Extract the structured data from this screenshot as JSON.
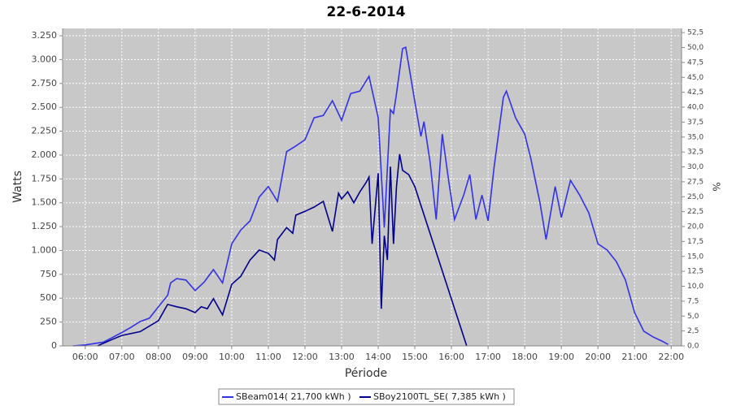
{
  "chart_data": {
    "type": "line",
    "title": "22-6-2014",
    "x_label": "Période",
    "y_label": "Watts",
    "y2_label": "%",
    "xlim": [
      "05:23",
      "22:17"
    ],
    "xticks": [
      "06:00",
      "07:00",
      "08:00",
      "09:00",
      "10:00",
      "11:00",
      "12:00",
      "13:00",
      "14:00",
      "15:00",
      "16:00",
      "17:00",
      "18:00",
      "19:00",
      "20:00",
      "21:00",
      "22:00"
    ],
    "ylim": [
      0,
      3327
    ],
    "yticks": [
      {
        "value": 0,
        "label": "0"
      },
      {
        "value": 250,
        "label": "250"
      },
      {
        "value": 500,
        "label": "500"
      },
      {
        "value": 750,
        "label": "750"
      },
      {
        "value": 1000,
        "label": "1.000"
      },
      {
        "value": 1250,
        "label": "1.250"
      },
      {
        "value": 1500,
        "label": "1.500"
      },
      {
        "value": 1750,
        "label": "1.750"
      },
      {
        "value": 2000,
        "label": "2.000"
      },
      {
        "value": 2250,
        "label": "2.250"
      },
      {
        "value": 2500,
        "label": "2.500"
      },
      {
        "value": 2750,
        "label": "2.750"
      },
      {
        "value": 3000,
        "label": "3.000"
      },
      {
        "value": 3250,
        "label": "3.250"
      }
    ],
    "y2lim": [
      0,
      53.2
    ],
    "y2ticks": [
      {
        "value": 0,
        "label": "0,0"
      },
      {
        "value": 2.5,
        "label": "2,5"
      },
      {
        "value": 5,
        "label": "5,0"
      },
      {
        "value": 7.5,
        "label": "7,5"
      },
      {
        "value": 10,
        "label": "10,0"
      },
      {
        "value": 12.5,
        "label": "12,5"
      },
      {
        "value": 15,
        "label": "15,0"
      },
      {
        "value": 17.5,
        "label": "17,5"
      },
      {
        "value": 20,
        "label": "20,0"
      },
      {
        "value": 22.5,
        "label": "22,5"
      },
      {
        "value": 25,
        "label": "25,0"
      },
      {
        "value": 27.5,
        "label": "27,5"
      },
      {
        "value": 30,
        "label": "30,0"
      },
      {
        "value": 32.5,
        "label": "32,5"
      },
      {
        "value": 35,
        "label": "35,0"
      },
      {
        "value": 37.5,
        "label": "37,5"
      },
      {
        "value": 40,
        "label": "40,0"
      },
      {
        "value": 42.5,
        "label": "42,5"
      },
      {
        "value": 45,
        "label": "45,0"
      },
      {
        "value": 47.5,
        "label": "47,5"
      },
      {
        "value": 50,
        "label": "50,0"
      },
      {
        "value": 52.5,
        "label": "52,5"
      }
    ],
    "grid": true,
    "legend": "bottom",
    "series": [
      {
        "name": "SBeam014( 21,700 kWh )",
        "color": "#3232e6",
        "x": [
          "05:40",
          "06:00",
          "06:30",
          "06:45",
          "07:00",
          "07:15",
          "07:30",
          "07:45",
          "08:00",
          "08:15",
          "08:20",
          "08:30",
          "08:45",
          "09:00",
          "09:15",
          "09:30",
          "09:45",
          "10:00",
          "10:15",
          "10:30",
          "10:45",
          "11:00",
          "11:15",
          "11:30",
          "11:45",
          "12:00",
          "12:15",
          "12:30",
          "12:45",
          "13:00",
          "13:15",
          "13:30",
          "13:45",
          "14:00",
          "14:10",
          "14:20",
          "14:25",
          "14:30",
          "14:40",
          "14:45",
          "14:50",
          "15:00",
          "15:10",
          "15:15",
          "15:25",
          "15:35",
          "15:45",
          "15:55",
          "16:05",
          "16:20",
          "16:30",
          "16:40",
          "16:50",
          "17:00",
          "17:10",
          "17:25",
          "17:30",
          "17:45",
          "18:00",
          "18:10",
          "18:25",
          "18:35",
          "18:50",
          "19:00",
          "19:15",
          "19:30",
          "19:45",
          "20:00",
          "20:15",
          "20:30",
          "20:45",
          "21:00",
          "21:15",
          "21:30",
          "21:45",
          "21:55"
        ],
        "values": [
          0,
          10,
          40,
          90,
          140,
          195,
          255,
          290,
          410,
          530,
          660,
          705,
          690,
          580,
          670,
          800,
          660,
          1070,
          1215,
          1310,
          1560,
          1670,
          1515,
          2035,
          2095,
          2160,
          2390,
          2415,
          2570,
          2365,
          2645,
          2670,
          2825,
          2390,
          1240,
          2475,
          2435,
          2645,
          3115,
          3130,
          2945,
          2560,
          2195,
          2350,
          1925,
          1325,
          2220,
          1750,
          1325,
          1580,
          1795,
          1325,
          1580,
          1310,
          1880,
          2605,
          2670,
          2390,
          2220,
          1965,
          1500,
          1115,
          1670,
          1345,
          1735,
          1580,
          1395,
          1070,
          1005,
          885,
          690,
          350,
          155,
          95,
          50,
          15
        ]
      },
      {
        "name": "SBoy2100TL_SE( 7,385 kWh )",
        "color": "#00008c",
        "x": [
          "06:20",
          "06:45",
          "07:00",
          "07:30",
          "08:00",
          "08:15",
          "08:30",
          "08:45",
          "09:00",
          "09:10",
          "09:20",
          "09:30",
          "09:45",
          "10:00",
          "10:15",
          "10:30",
          "10:45",
          "11:00",
          "11:10",
          "11:15",
          "11:30",
          "11:40",
          "11:45",
          "12:00",
          "12:15",
          "12:30",
          "12:45",
          "12:55",
          "13:00",
          "13:10",
          "13:20",
          "13:30",
          "13:40",
          "13:45",
          "13:50",
          "14:00",
          "14:05",
          "14:10",
          "14:15",
          "14:20",
          "14:25",
          "14:30",
          "14:35",
          "14:40",
          "14:50",
          "15:00",
          "16:25"
        ],
        "values": [
          0,
          70,
          110,
          150,
          265,
          435,
          410,
          390,
          350,
          410,
          390,
          495,
          325,
          645,
          730,
          900,
          1005,
          970,
          900,
          1115,
          1240,
          1180,
          1370,
          1410,
          1455,
          1515,
          1200,
          1600,
          1540,
          1615,
          1500,
          1615,
          1710,
          1770,
          1070,
          1810,
          390,
          1155,
          900,
          1880,
          1070,
          1670,
          2010,
          1840,
          1795,
          1670,
          0
        ]
      }
    ]
  }
}
